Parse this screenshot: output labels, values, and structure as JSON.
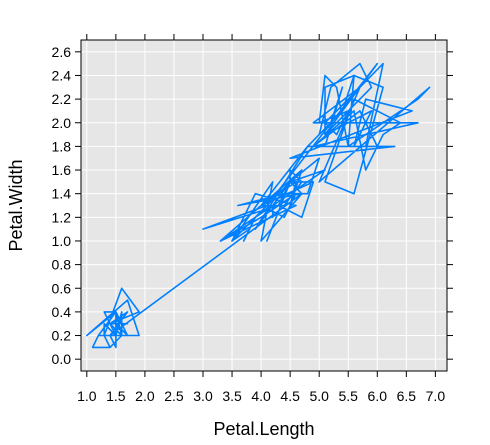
{
  "chart_data": {
    "type": "line",
    "xlabel": "Petal.Length",
    "ylabel": "Petal.Width",
    "xlim": [
      0.9,
      7.2
    ],
    "ylim": [
      -0.1,
      2.7
    ],
    "grid": true,
    "x_ticks": [
      "1.0",
      "1.5",
      "2.0",
      "2.5",
      "3.0",
      "3.5",
      "4.0",
      "4.5",
      "5.0",
      "5.5",
      "6.0",
      "6.5",
      "7.0"
    ],
    "y_ticks": [
      "0.0",
      "0.2",
      "0.4",
      "0.6",
      "0.8",
      "1.0",
      "1.2",
      "1.4",
      "1.6",
      "1.8",
      "2.0",
      "2.2",
      "2.4",
      "2.6"
    ],
    "colors": {
      "line": "#0080ff",
      "panel": "#e6e6e6",
      "grid": "#ffffff",
      "frame": "#000000"
    },
    "series": [
      {
        "x": [
          1.4,
          1.4,
          1.3,
          1.5,
          1.4,
          1.7,
          1.4,
          1.5,
          1.4,
          1.5,
          1.5,
          1.6,
          1.4,
          1.1,
          1.2,
          1.5,
          1.3,
          1.4,
          1.7,
          1.5,
          1.7,
          1.5,
          1.0,
          1.7,
          1.9,
          1.6,
          1.6,
          1.5,
          1.4,
          1.6,
          1.6,
          1.5,
          1.5,
          1.4,
          1.5,
          1.2,
          1.3,
          1.4,
          1.3,
          1.5,
          1.3,
          1.3,
          1.3,
          1.6,
          1.9,
          1.4,
          1.6,
          1.4,
          1.5,
          1.4,
          4.7,
          4.5,
          4.9,
          4.0,
          4.6,
          4.5,
          4.7,
          3.3,
          4.6,
          3.9,
          3.5,
          4.2,
          4.0,
          4.7,
          3.6,
          4.4,
          4.5,
          4.1,
          4.5,
          3.9,
          4.8,
          4.0,
          4.9,
          4.7,
          4.3,
          4.4,
          4.8,
          5.0,
          4.5,
          3.5,
          3.8,
          3.7,
          3.9,
          5.1,
          4.5,
          4.5,
          4.7,
          4.4,
          4.1,
          4.0,
          4.4,
          4.6,
          4.0,
          3.3,
          4.2,
          4.2,
          4.2,
          4.3,
          3.0,
          4.1,
          6.0,
          5.1,
          5.9,
          5.6,
          5.8,
          6.6,
          4.5,
          6.3,
          5.8,
          6.1,
          5.1,
          5.3,
          5.5,
          5.0,
          5.1,
          5.3,
          5.5,
          6.7,
          6.9,
          5.0,
          5.7,
          4.9,
          6.7,
          4.9,
          5.7,
          6.0,
          4.8,
          4.9,
          5.6,
          5.8,
          6.1,
          6.4,
          5.6,
          5.1,
          5.6,
          6.1,
          5.6,
          5.5,
          4.8,
          5.4,
          5.6,
          5.1,
          5.1,
          5.9,
          5.7,
          5.2,
          5.0,
          5.2,
          5.4,
          5.1
        ],
        "y": [
          0.2,
          0.2,
          0.2,
          0.2,
          0.2,
          0.4,
          0.3,
          0.2,
          0.2,
          0.1,
          0.2,
          0.2,
          0.1,
          0.1,
          0.2,
          0.4,
          0.4,
          0.3,
          0.3,
          0.3,
          0.2,
          0.4,
          0.2,
          0.5,
          0.2,
          0.2,
          0.4,
          0.2,
          0.2,
          0.2,
          0.2,
          0.4,
          0.1,
          0.2,
          0.2,
          0.2,
          0.2,
          0.1,
          0.2,
          0.2,
          0.3,
          0.3,
          0.2,
          0.6,
          0.4,
          0.3,
          0.2,
          0.2,
          0.2,
          0.2,
          1.4,
          1.5,
          1.5,
          1.3,
          1.5,
          1.3,
          1.6,
          1.0,
          1.3,
          1.4,
          1.0,
          1.5,
          1.0,
          1.4,
          1.3,
          1.4,
          1.5,
          1.0,
          1.5,
          1.1,
          1.8,
          1.3,
          1.5,
          1.2,
          1.3,
          1.4,
          1.4,
          1.7,
          1.5,
          1.0,
          1.1,
          1.0,
          1.2,
          1.6,
          1.5,
          1.6,
          1.5,
          1.3,
          1.3,
          1.3,
          1.2,
          1.4,
          1.2,
          1.0,
          1.3,
          1.2,
          1.3,
          1.3,
          1.1,
          1.3,
          2.5,
          1.9,
          2.1,
          1.8,
          2.2,
          2.1,
          1.7,
          1.8,
          1.8,
          2.5,
          2.0,
          1.9,
          2.1,
          2.0,
          2.4,
          2.3,
          1.8,
          2.2,
          2.3,
          1.5,
          2.3,
          2.0,
          2.0,
          1.8,
          2.1,
          1.8,
          1.8,
          1.8,
          2.1,
          1.6,
          1.9,
          2.0,
          2.2,
          1.5,
          1.4,
          2.3,
          2.4,
          1.8,
          1.8,
          2.1,
          2.4,
          2.3,
          1.9,
          2.3,
          2.5,
          2.3,
          1.9,
          2.0,
          2.3,
          1.8
        ]
      }
    ]
  }
}
